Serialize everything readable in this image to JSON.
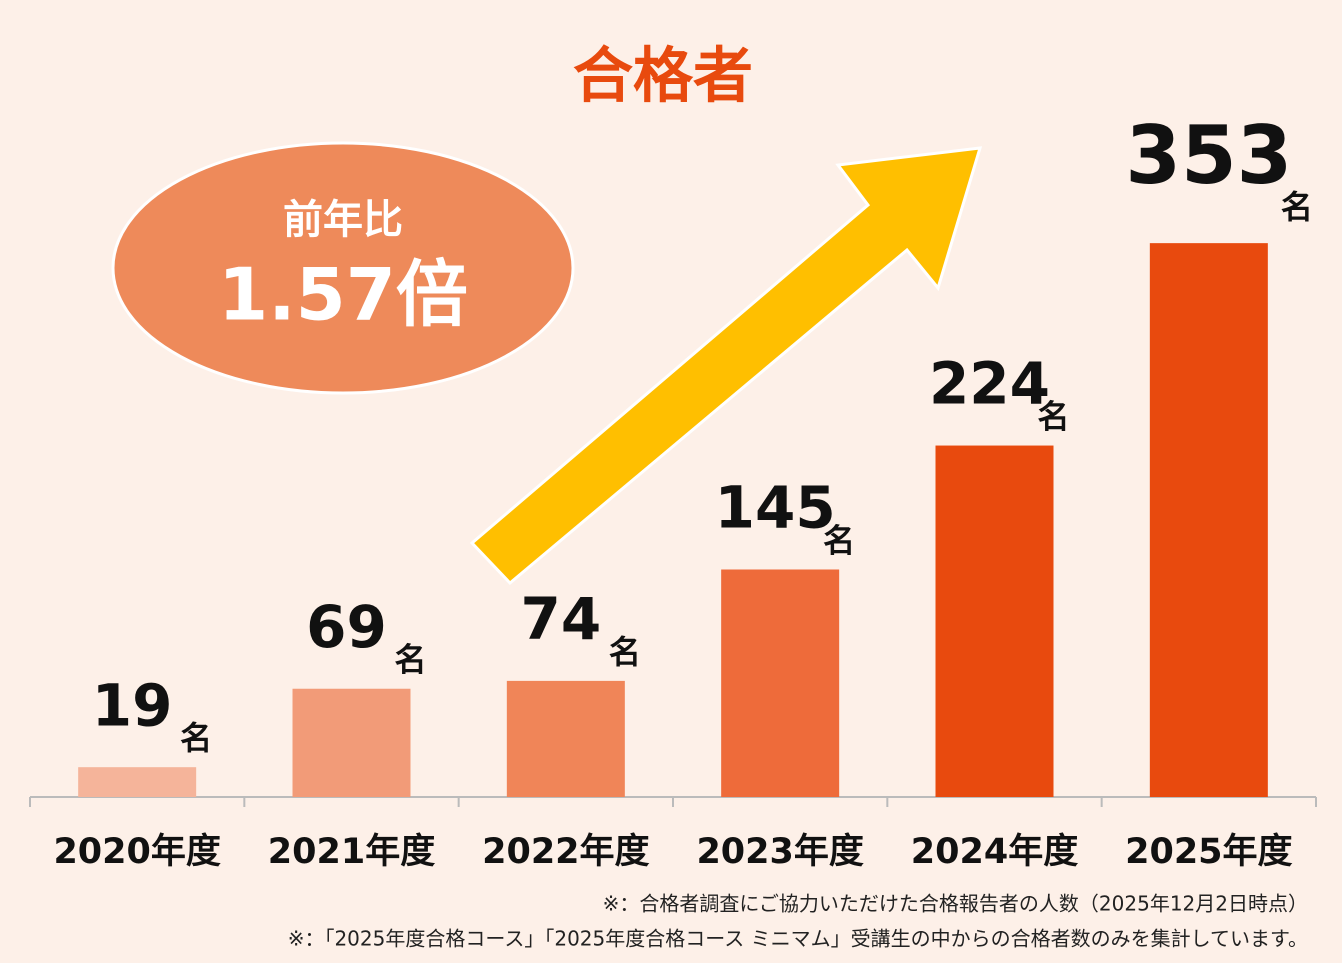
{
  "chart_data": {
    "type": "bar",
    "title": "合格者",
    "categories": [
      "2020年度",
      "2021年度",
      "2022年度",
      "2023年度",
      "2024年度",
      "2025年度"
    ],
    "values": [
      19,
      69,
      74,
      145,
      224,
      353
    ],
    "unit": "名",
    "colors": [
      "#f5b49a",
      "#f29b78",
      "#f08558",
      "#ee6b3a",
      "#e84a0e",
      "#e84a0e"
    ],
    "annotation": {
      "label": "前年比",
      "value": "1.57倍"
    },
    "footnotes": [
      "※：合格者調査にご協力いただけた合格報告者の人数（2025年12月2日時点）",
      "※：「2025年度合格コース」「2025年度合格コース ミニマム」受講生の中からの合格者数のみを集計しています。"
    ]
  }
}
